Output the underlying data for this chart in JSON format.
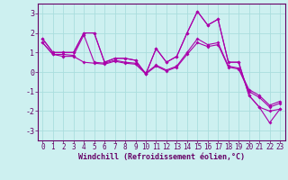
{
  "xlabel": "Windchill (Refroidissement éolien,°C)",
  "ylabel": "",
  "bg_color": "#cdf0f0",
  "line_color": "#aa00aa",
  "grid_color": "#aadddd",
  "xlim": [
    -0.5,
    23.5
  ],
  "ylim": [
    -3.5,
    3.5
  ],
  "yticks": [
    -3,
    -2,
    -1,
    0,
    1,
    2,
    3
  ],
  "xticks": [
    0,
    1,
    2,
    3,
    4,
    5,
    6,
    7,
    8,
    9,
    10,
    11,
    12,
    13,
    14,
    15,
    16,
    17,
    18,
    19,
    20,
    21,
    22,
    23
  ],
  "series": [
    [
      1.7,
      1.0,
      1.0,
      1.0,
      2.0,
      2.0,
      0.5,
      0.7,
      0.7,
      0.6,
      -0.1,
      1.2,
      0.5,
      0.8,
      2.0,
      3.1,
      2.4,
      2.7,
      0.5,
      0.5,
      -1.2,
      -1.8,
      -2.0,
      -1.9
    ],
    [
      1.7,
      1.0,
      1.0,
      1.0,
      2.0,
      2.0,
      0.5,
      0.7,
      0.7,
      0.6,
      -0.1,
      1.2,
      0.5,
      0.8,
      2.0,
      3.1,
      2.4,
      2.7,
      0.5,
      0.5,
      -1.2,
      -1.8,
      -2.6,
      -1.9
    ],
    [
      1.5,
      0.9,
      0.9,
      0.85,
      1.9,
      0.5,
      0.45,
      0.6,
      0.5,
      0.45,
      -0.05,
      0.35,
      0.1,
      0.3,
      1.0,
      1.7,
      1.4,
      1.5,
      0.3,
      0.2,
      -0.9,
      -1.2,
      -1.7,
      -1.5
    ],
    [
      1.5,
      0.9,
      0.8,
      0.8,
      0.5,
      0.45,
      0.4,
      0.55,
      0.45,
      0.4,
      -0.1,
      0.3,
      0.05,
      0.25,
      0.9,
      1.5,
      1.3,
      1.4,
      0.25,
      0.15,
      -1.0,
      -1.3,
      -1.8,
      -1.6
    ]
  ]
}
